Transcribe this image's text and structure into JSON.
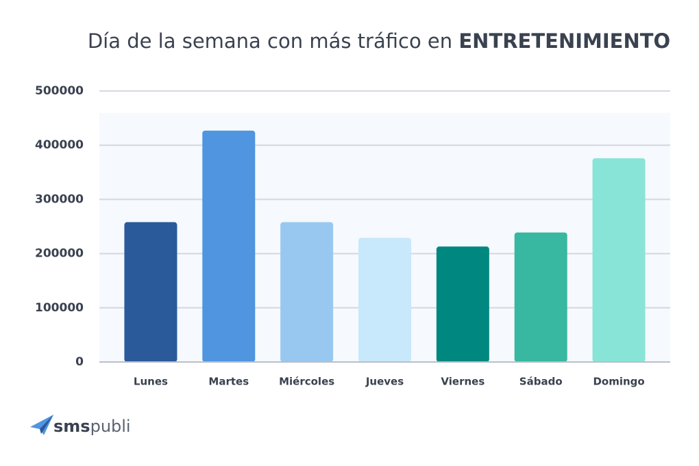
{
  "chart_data": {
    "type": "bar",
    "title": "Día de la semana con más tráfico en",
    "title_emphasis": "ENTRETENIMIENTO",
    "categories": [
      "Lunes",
      "Martes",
      "Miércoles",
      "Jueves",
      "Viernes",
      "Sábado",
      "Domingo"
    ],
    "values": [
      258000,
      427000,
      258000,
      229000,
      213000,
      239000,
      376000
    ],
    "colors": [
      "#2a5a9a",
      "#4f95e0",
      "#98c8f0",
      "#c8e8fb",
      "#008880",
      "#38b8a0",
      "#88e4d6"
    ],
    "ylim": [
      0,
      500000
    ],
    "yticks": [
      0,
      100000,
      200000,
      300000,
      400000,
      500000
    ],
    "grid": true
  },
  "logo": {
    "bold": "sms",
    "light": "publi"
  }
}
